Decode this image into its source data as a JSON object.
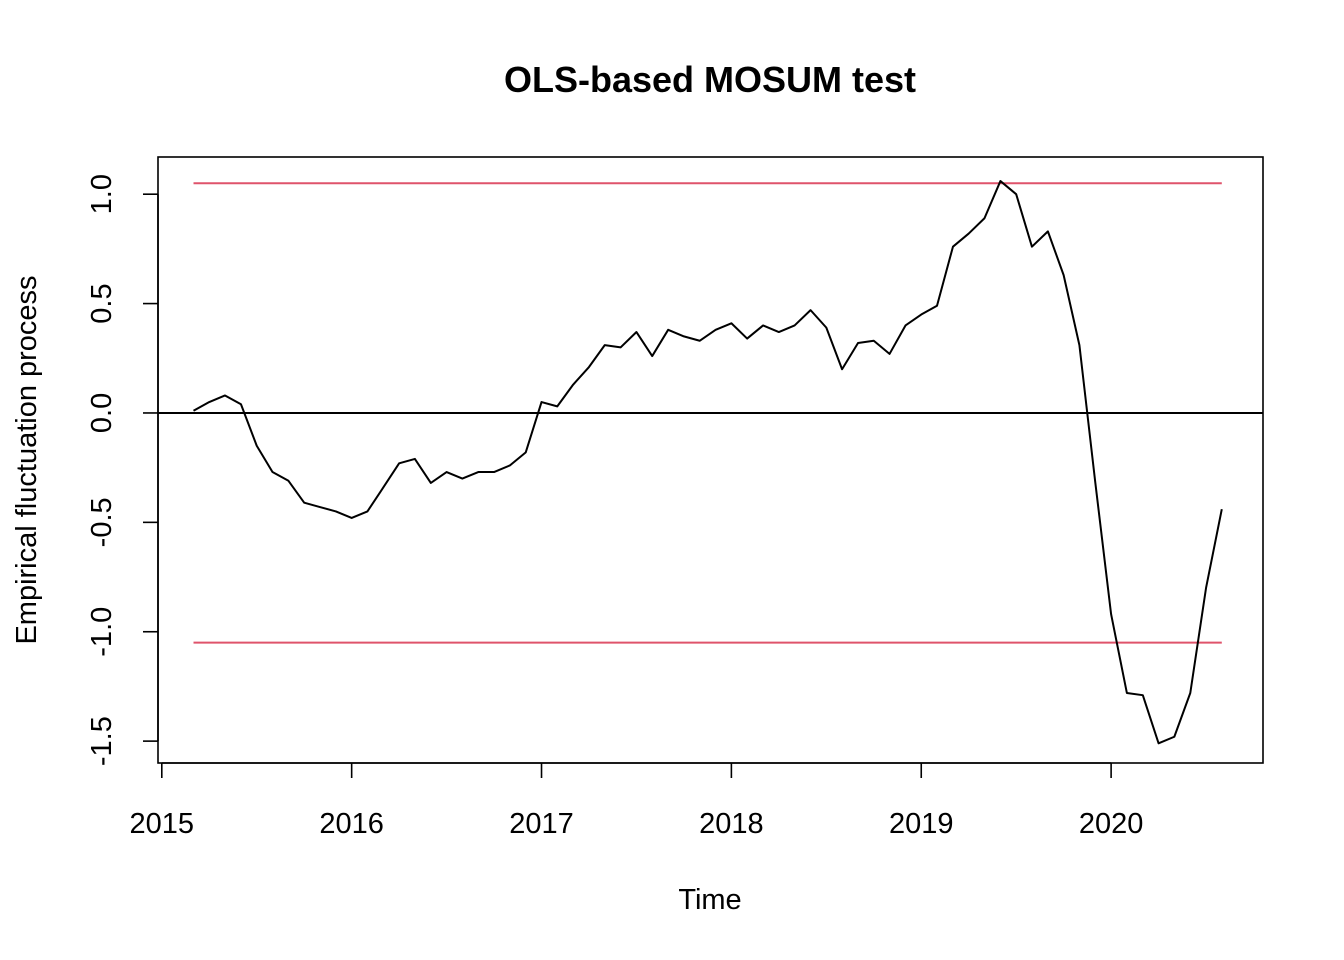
{
  "chart_data": {
    "type": "line",
    "title": "OLS-based MOSUM test",
    "xlabel": "Time",
    "ylabel": "Empirical fluctuation process",
    "xlim": [
      2014.98,
      2020.8
    ],
    "ylim": [
      -1.6,
      1.17
    ],
    "x_ticks": [
      2015,
      2016,
      2017,
      2018,
      2019,
      2020
    ],
    "x_tick_labels": [
      "2015",
      "2016",
      "2017",
      "2018",
      "2019",
      "2020"
    ],
    "y_ticks": [
      -1.5,
      -1.0,
      -0.5,
      0.0,
      0.5,
      1.0
    ],
    "y_tick_labels": [
      "-1.5",
      "-1.0",
      "-0.5",
      "0.0",
      "0.5",
      "1.0"
    ],
    "grid": false,
    "legend": "none",
    "reference_line": {
      "y": 0,
      "color": "#000000"
    },
    "boundaries": {
      "upper": 1.05,
      "lower": -1.05,
      "x_start": 2015.167,
      "x_end": 2020.583,
      "color": "#DF536B"
    },
    "series": [
      {
        "color": "#000000",
        "x": [
          2015.167,
          2015.25,
          2015.333,
          2015.417,
          2015.5,
          2015.583,
          2015.667,
          2015.75,
          2015.833,
          2015.917,
          2016.0,
          2016.083,
          2016.167,
          2016.25,
          2016.333,
          2016.417,
          2016.5,
          2016.583,
          2016.667,
          2016.75,
          2016.833,
          2016.917,
          2017.0,
          2017.083,
          2017.167,
          2017.25,
          2017.333,
          2017.417,
          2017.5,
          2017.583,
          2017.667,
          2017.75,
          2017.833,
          2017.917,
          2018.0,
          2018.083,
          2018.167,
          2018.25,
          2018.333,
          2018.417,
          2018.5,
          2018.583,
          2018.667,
          2018.75,
          2018.833,
          2018.917,
          2019.0,
          2019.083,
          2019.167,
          2019.25,
          2019.333,
          2019.417,
          2019.5,
          2019.583,
          2019.667,
          2019.75,
          2019.833,
          2019.917,
          2020.0,
          2020.083,
          2020.167,
          2020.25,
          2020.333,
          2020.417,
          2020.5,
          2020.583
        ],
        "y": [
          0.01,
          0.05,
          0.08,
          0.04,
          -0.15,
          -0.27,
          -0.31,
          -0.41,
          -0.43,
          -0.45,
          -0.48,
          -0.45,
          -0.34,
          -0.23,
          -0.21,
          -0.32,
          -0.27,
          -0.3,
          -0.27,
          -0.27,
          -0.24,
          -0.18,
          0.05,
          0.03,
          0.13,
          0.21,
          0.31,
          0.3,
          0.37,
          0.26,
          0.38,
          0.35,
          0.33,
          0.38,
          0.41,
          0.34,
          0.4,
          0.37,
          0.4,
          0.47,
          0.39,
          0.2,
          0.32,
          0.33,
          0.27,
          0.4,
          0.45,
          0.49,
          0.76,
          0.82,
          0.89,
          1.06,
          1.0,
          0.76,
          0.83,
          0.63,
          0.31,
          -0.32,
          -0.92,
          -1.28,
          -1.29,
          -1.51,
          -1.48,
          -1.28,
          -0.8,
          -0.44
        ]
      }
    ]
  }
}
